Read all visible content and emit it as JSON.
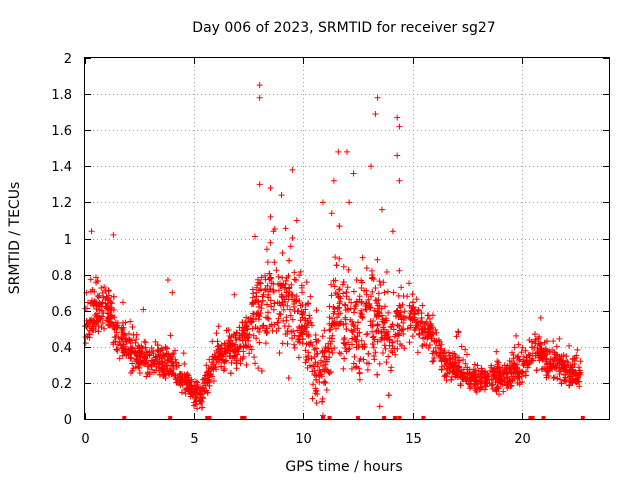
{
  "chart_data": {
    "type": "scatter",
    "title": "Day 006 of 2023, SRMTID for receiver sg27",
    "xlabel": "GPS time / hours",
    "ylabel": "SRMTID / TECUs",
    "xlim": [
      0,
      24
    ],
    "ylim": [
      0,
      2
    ],
    "xticks": [
      0,
      5,
      10,
      15,
      20
    ],
    "xtick_labels": [
      "0",
      "5",
      "10",
      "15",
      "20"
    ],
    "yticks": [
      0,
      0.2,
      0.4,
      0.6,
      0.8,
      1,
      1.2,
      1.4,
      1.6,
      1.8,
      2
    ],
    "ytick_labels": [
      "0",
      "0.2",
      "0.4",
      "0.6",
      "0.8",
      "1",
      "1.2",
      "1.4",
      "1.6",
      "1.8",
      "2"
    ],
    "grid": true,
    "marker": "+",
    "color": "#ff0000",
    "trend": [
      [
        0.0,
        0.55
      ],
      [
        0.5,
        0.6
      ],
      [
        1.0,
        0.62
      ],
      [
        1.5,
        0.45
      ],
      [
        2.0,
        0.38
      ],
      [
        2.5,
        0.35
      ],
      [
        3.0,
        0.32
      ],
      [
        3.5,
        0.33
      ],
      [
        4.0,
        0.3
      ],
      [
        4.5,
        0.22
      ],
      [
        5.0,
        0.15
      ],
      [
        5.3,
        0.12
      ],
      [
        5.6,
        0.2
      ],
      [
        6.0,
        0.35
      ],
      [
        6.5,
        0.38
      ],
      [
        7.0,
        0.4
      ],
      [
        7.5,
        0.48
      ],
      [
        8.0,
        0.62
      ],
      [
        8.5,
        0.72
      ],
      [
        9.0,
        0.65
      ],
      [
        9.5,
        0.6
      ],
      [
        10.0,
        0.5
      ],
      [
        10.5,
        0.35
      ],
      [
        11.0,
        0.25
      ],
      [
        11.5,
        0.62
      ],
      [
        12.0,
        0.55
      ],
      [
        12.5,
        0.45
      ],
      [
        13.0,
        0.6
      ],
      [
        13.5,
        0.55
      ],
      [
        14.0,
        0.45
      ],
      [
        14.5,
        0.55
      ],
      [
        15.0,
        0.58
      ],
      [
        15.5,
        0.5
      ],
      [
        16.0,
        0.42
      ],
      [
        16.5,
        0.3
      ],
      [
        17.0,
        0.28
      ],
      [
        17.5,
        0.25
      ],
      [
        18.0,
        0.22
      ],
      [
        18.5,
        0.22
      ],
      [
        19.0,
        0.22
      ],
      [
        19.5,
        0.25
      ],
      [
        20.0,
        0.28
      ],
      [
        20.5,
        0.4
      ],
      [
        21.0,
        0.35
      ],
      [
        21.5,
        0.3
      ],
      [
        22.0,
        0.28
      ],
      [
        22.5,
        0.25
      ],
      [
        22.7,
        0.25
      ]
    ],
    "spread": [
      [
        0.0,
        0.15
      ],
      [
        2.0,
        0.12
      ],
      [
        4.5,
        0.08
      ],
      [
        6.0,
        0.1
      ],
      [
        7.5,
        0.15
      ],
      [
        8.0,
        0.3
      ],
      [
        9.0,
        0.3
      ],
      [
        10.0,
        0.25
      ],
      [
        11.0,
        0.3
      ],
      [
        12.0,
        0.3
      ],
      [
        13.0,
        0.3
      ],
      [
        14.0,
        0.25
      ],
      [
        15.0,
        0.15
      ],
      [
        16.5,
        0.1
      ],
      [
        18.0,
        0.08
      ],
      [
        20.0,
        0.1
      ],
      [
        21.0,
        0.12
      ],
      [
        22.7,
        0.1
      ]
    ],
    "outliers": [
      {
        "x": 8.0,
        "y": 1.85
      },
      {
        "x": 8.0,
        "y": 1.78
      },
      {
        "x": 13.4,
        "y": 1.78
      },
      {
        "x": 14.3,
        "y": 1.67
      },
      {
        "x": 14.4,
        "y": 1.62
      },
      {
        "x": 13.3,
        "y": 1.69
      },
      {
        "x": 11.6,
        "y": 1.48
      },
      {
        "x": 12.0,
        "y": 1.48
      },
      {
        "x": 14.3,
        "y": 1.46
      },
      {
        "x": 13.1,
        "y": 1.4
      },
      {
        "x": 12.3,
        "y": 1.36
      },
      {
        "x": 9.5,
        "y": 1.38
      },
      {
        "x": 11.4,
        "y": 1.32
      },
      {
        "x": 8.0,
        "y": 1.3
      },
      {
        "x": 14.4,
        "y": 1.32
      },
      {
        "x": 8.5,
        "y": 1.28
      },
      {
        "x": 9.0,
        "y": 1.24
      },
      {
        "x": 10.9,
        "y": 1.2
      },
      {
        "x": 13.6,
        "y": 1.16
      },
      {
        "x": 12.1,
        "y": 1.2
      },
      {
        "x": 0.3,
        "y": 1.04
      },
      {
        "x": 1.3,
        "y": 1.02
      },
      {
        "x": 3.8,
        "y": 0.77
      },
      {
        "x": 4.0,
        "y": 0.7
      },
      {
        "x": 13.5,
        "y": 0.07
      },
      {
        "x": 10.9,
        "y": 0.02
      },
      {
        "x": 8.5,
        "y": 1.12
      },
      {
        "x": 9.7,
        "y": 1.1
      },
      {
        "x": 14.1,
        "y": 1.04
      },
      {
        "x": 11.3,
        "y": 1.14
      }
    ],
    "baseline_points": [
      1.8,
      3.9,
      5.6,
      5.7,
      7.2,
      7.3,
      10.9,
      11.2,
      12.5,
      13.7,
      14.2,
      14.4,
      15.5,
      20.4,
      20.5,
      21.0,
      22.8
    ]
  }
}
